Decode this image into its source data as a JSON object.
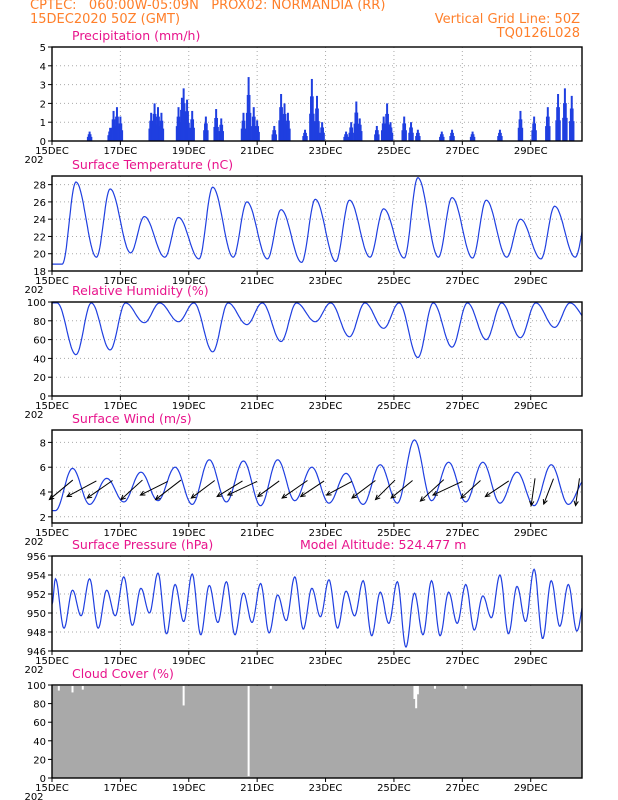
{
  "header": {
    "line1_left": "CPTEC:   060:00W-05:09N   PROX02: NORMANDIA (RR)",
    "line2_left": "15DEC2020 50Z (GMT)",
    "line2_right": "Vertical Grid Line: 50Z",
    "line3_right": "TQ0126L028"
  },
  "colors": {
    "header": "#ff7f2a",
    "title": "#e8148c",
    "series": "#1f3fe0",
    "cloud": "#a9a9a9",
    "grid": "#aaaaaa"
  },
  "x_axis": {
    "range_days": [
      0,
      15.5
    ],
    "tick_labels": [
      {
        "day": 0,
        "label": "15DEC"
      },
      {
        "day": 2,
        "label": "17DEC"
      },
      {
        "day": 4,
        "label": "19DEC"
      },
      {
        "day": 6,
        "label": "21DEC"
      },
      {
        "day": 8,
        "label": "23DEC"
      },
      {
        "day": 10,
        "label": "25DEC"
      },
      {
        "day": 12,
        "label": "27DEC"
      },
      {
        "day": 14,
        "label": "29DEC"
      }
    ],
    "year_fragment": "202"
  },
  "chart_data": [
    {
      "type": "bar",
      "title": "Precipitation (mm/h)",
      "ylim": [
        0,
        5
      ],
      "yticks": [
        0,
        1,
        2,
        3,
        4,
        5
      ],
      "spikes": [
        {
          "day": 1.1,
          "v": 0.5
        },
        {
          "day": 1.7,
          "v": 0.7
        },
        {
          "day": 1.8,
          "v": 1.6
        },
        {
          "day": 1.9,
          "v": 1.8
        },
        {
          "day": 2.0,
          "v": 1.3
        },
        {
          "day": 2.9,
          "v": 1.5
        },
        {
          "day": 3.0,
          "v": 2.0
        },
        {
          "day": 3.1,
          "v": 1.8
        },
        {
          "day": 3.2,
          "v": 1.5
        },
        {
          "day": 3.7,
          "v": 1.8
        },
        {
          "day": 3.8,
          "v": 2.3
        },
        {
          "day": 3.85,
          "v": 2.8
        },
        {
          "day": 3.95,
          "v": 2.2
        },
        {
          "day": 4.1,
          "v": 1.6
        },
        {
          "day": 4.5,
          "v": 1.3
        },
        {
          "day": 4.8,
          "v": 1.7
        },
        {
          "day": 4.95,
          "v": 1.2
        },
        {
          "day": 5.6,
          "v": 1.5
        },
        {
          "day": 5.75,
          "v": 3.4
        },
        {
          "day": 5.9,
          "v": 1.8
        },
        {
          "day": 6.0,
          "v": 1.1
        },
        {
          "day": 6.5,
          "v": 0.8
        },
        {
          "day": 6.7,
          "v": 2.5
        },
        {
          "day": 6.8,
          "v": 2.0
        },
        {
          "day": 6.9,
          "v": 1.5
        },
        {
          "day": 7.4,
          "v": 0.6
        },
        {
          "day": 7.6,
          "v": 3.3
        },
        {
          "day": 7.75,
          "v": 2.4
        },
        {
          "day": 7.9,
          "v": 1.0
        },
        {
          "day": 8.6,
          "v": 0.5
        },
        {
          "day": 8.75,
          "v": 1.0
        },
        {
          "day": 8.9,
          "v": 2.1
        },
        {
          "day": 9.0,
          "v": 1.2
        },
        {
          "day": 9.5,
          "v": 0.8
        },
        {
          "day": 9.7,
          "v": 1.3
        },
        {
          "day": 9.8,
          "v": 2.0
        },
        {
          "day": 9.9,
          "v": 1.0
        },
        {
          "day": 10.3,
          "v": 1.3
        },
        {
          "day": 10.5,
          "v": 1.0
        },
        {
          "day": 10.7,
          "v": 0.6
        },
        {
          "day": 11.4,
          "v": 0.5
        },
        {
          "day": 11.7,
          "v": 0.6
        },
        {
          "day": 12.3,
          "v": 0.5
        },
        {
          "day": 13.1,
          "v": 0.6
        },
        {
          "day": 13.7,
          "v": 1.6
        },
        {
          "day": 14.1,
          "v": 1.3
        },
        {
          "day": 14.5,
          "v": 1.8
        },
        {
          "day": 14.8,
          "v": 2.5
        },
        {
          "day": 15.0,
          "v": 2.8
        },
        {
          "day": 15.2,
          "v": 2.4
        }
      ]
    },
    {
      "type": "line",
      "title": "Surface Temperature (nC)",
      "ylim": [
        18,
        29
      ],
      "yticks": [
        18,
        20,
        22,
        24,
        26,
        28
      ],
      "daily_max": [
        28.3,
        27.5,
        24.3,
        24.2,
        27.7,
        26.0,
        25.1,
        26.3,
        26.2,
        25.2,
        28.8,
        26.5,
        26.2,
        24.0,
        25.5,
        25.4
      ],
      "daily_min": [
        18.8,
        19.6,
        20.1,
        19.6,
        19.4,
        19.6,
        19.4,
        19.0,
        19.1,
        19.6,
        19.5,
        19.6,
        19.5,
        19.6,
        19.4,
        19.6
      ],
      "max_phase": 0.7,
      "min_phase": 0.3
    },
    {
      "type": "line",
      "title": "Relative Humidity (%)",
      "ylim": [
        0,
        100
      ],
      "yticks": [
        0,
        20,
        40,
        60,
        80,
        100
      ],
      "daily_min": [
        44,
        49,
        78,
        79,
        47,
        76,
        58,
        79,
        63,
        72,
        41,
        52,
        60,
        62,
        73,
        80
      ],
      "min_phase": 0.7
    },
    {
      "type": "line",
      "title": "Surface Wind (m/s)",
      "ylim": [
        1.5,
        9
      ],
      "yticks": [
        2,
        4,
        6,
        8
      ],
      "daily_max": [
        5.9,
        5.1,
        5.6,
        6.0,
        6.6,
        6.5,
        6.6,
        6.0,
        5.5,
        6.2,
        8.2,
        6.4,
        6.4,
        5.6,
        6.2,
        5.0
      ],
      "daily_min": [
        2.5,
        3.0,
        3.2,
        3.3,
        3.0,
        3.2,
        2.9,
        3.3,
        3.1,
        3.0,
        3.1,
        3.3,
        3.2,
        3.1,
        2.9,
        3.0
      ],
      "max_phase": 0.6,
      "min_phase": 0.1,
      "vectors": [
        {
          "day": 0.45,
          "u": -1.2,
          "v": -1.0
        },
        {
          "day": 1.1,
          "u": -1.5,
          "v": -0.8
        },
        {
          "day": 1.6,
          "u": -1.3,
          "v": -0.9
        },
        {
          "day": 2.5,
          "u": -1.1,
          "v": -1.0
        },
        {
          "day": 3.2,
          "u": -1.4,
          "v": -0.7
        },
        {
          "day": 3.6,
          "u": -1.3,
          "v": -1.0
        },
        {
          "day": 4.6,
          "u": -1.2,
          "v": -0.9
        },
        {
          "day": 5.4,
          "u": -1.3,
          "v": -0.8
        },
        {
          "day": 5.8,
          "u": -1.5,
          "v": -0.7
        },
        {
          "day": 6.5,
          "u": -1.1,
          "v": -0.8
        },
        {
          "day": 7.3,
          "u": -1.3,
          "v": -0.9
        },
        {
          "day": 7.8,
          "u": -1.2,
          "v": -0.8
        },
        {
          "day": 8.6,
          "u": -1.3,
          "v": -0.7
        },
        {
          "day": 9.3,
          "u": -1.2,
          "v": -0.9
        },
        {
          "day": 9.9,
          "u": -1.0,
          "v": -1.0
        },
        {
          "day": 10.4,
          "u": -1.1,
          "v": -0.9
        },
        {
          "day": 11.3,
          "u": -1.2,
          "v": -1.1
        },
        {
          "day": 11.8,
          "u": -1.5,
          "v": -0.7
        },
        {
          "day": 12.4,
          "u": -1.0,
          "v": -0.9
        },
        {
          "day": 13.2,
          "u": -1.2,
          "v": -0.8
        },
        {
          "day": 14.1,
          "u": -0.2,
          "v": -1.4
        },
        {
          "day": 14.6,
          "u": -0.5,
          "v": -1.3
        },
        {
          "day": 15.4,
          "u": -0.2,
          "v": -1.4
        }
      ]
    },
    {
      "type": "line",
      "title": "Surface Pressure (hPa)",
      "annotation": "Model Altitude: 524.477  m",
      "ylim": [
        946,
        956
      ],
      "yticks": [
        946,
        948,
        950,
        952,
        954,
        956
      ],
      "daily_max": [
        953.6,
        953.6,
        953.8,
        954.2,
        954.1,
        953.3,
        953.1,
        953.8,
        953.5,
        953.4,
        953.3,
        953.4,
        953.0,
        954.0,
        954.6,
        953.0
      ],
      "daily_min": [
        948.4,
        948.4,
        948.7,
        947.8,
        947.7,
        947.7,
        947.9,
        948.3,
        948.4,
        947.6,
        946.4,
        947.6,
        948.2,
        947.8,
        947.3,
        948.1
      ]
    },
    {
      "type": "area",
      "title": "Cloud Cover (%)",
      "ylim": [
        0,
        100
      ],
      "yticks": [
        0,
        20,
        40,
        60,
        80,
        100
      ],
      "baseline": 99,
      "dips": [
        {
          "day": 0.2,
          "v": 94
        },
        {
          "day": 0.6,
          "v": 92
        },
        {
          "day": 0.9,
          "v": 95
        },
        {
          "day": 3.85,
          "v": 78
        },
        {
          "day": 5.75,
          "v": 2
        },
        {
          "day": 6.4,
          "v": 96
        },
        {
          "day": 10.6,
          "v": 85
        },
        {
          "day": 10.65,
          "v": 75
        },
        {
          "day": 10.7,
          "v": 90
        },
        {
          "day": 11.2,
          "v": 96
        },
        {
          "day": 12.1,
          "v": 96
        }
      ]
    }
  ]
}
